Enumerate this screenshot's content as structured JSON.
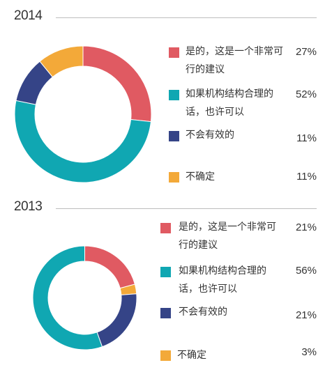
{
  "colors": {
    "red": "#e05a62",
    "teal": "#10a7b2",
    "navy": "#354487",
    "orange": "#f3a939"
  },
  "categories": [
    "是的，这是一个非常可行的建议",
    "如果机构结构合理的话，也许可以",
    "不会有效的",
    "不确定"
  ],
  "chart_data": [
    {
      "type": "pie",
      "title": "2014",
      "categories": [
        "是的，这是一个非常可行的建议",
        "如果机构结构合理的话，也许可以",
        "不会有效的",
        "不确定"
      ],
      "values": [
        27,
        52,
        11,
        11
      ],
      "value_labels": [
        "27%",
        "52%",
        "11%",
        "11%"
      ],
      "colors": [
        "#e05a62",
        "#10a7b2",
        "#354487",
        "#f3a939"
      ],
      "donut": true,
      "legend": "right"
    },
    {
      "type": "pie",
      "title": "2013",
      "categories": [
        "是的，这是一个非常可行的建议",
        "如果机构结构合理的话，也许可以",
        "不会有效的",
        "不确定"
      ],
      "values": [
        21,
        56,
        21,
        3
      ],
      "value_labels": [
        "21%",
        "56%",
        "21%",
        "3%"
      ],
      "colors": [
        "#e05a62",
        "#10a7b2",
        "#354487",
        "#f3a939"
      ],
      "donut": true,
      "legend": "right",
      "slice_order": [
        0,
        3,
        2,
        1
      ]
    }
  ],
  "legend_2014": [
    {
      "line1": "是的，这是一个非常可",
      "line2": "行的建议",
      "pct": "27%"
    },
    {
      "line1": "如果机构结构合理的",
      "line2": "话，也许可以",
      "pct": "52%"
    },
    {
      "line1": "不会有效的",
      "line2": "",
      "pct": "11%"
    },
    {
      "line1": "不确定",
      "line2": "",
      "pct": "11%"
    }
  ],
  "legend_2013": [
    {
      "line1": "是的，这是一个非常可",
      "line2": "行的建议",
      "pct": "21%"
    },
    {
      "line1": "如果机构结构合理的",
      "line2": "话，也许可以",
      "pct": "56%"
    },
    {
      "line1": "不会有效的",
      "line2": "",
      "pct": "21%"
    },
    {
      "line1": "不确定",
      "line2": "",
      "pct": "3%"
    }
  ]
}
